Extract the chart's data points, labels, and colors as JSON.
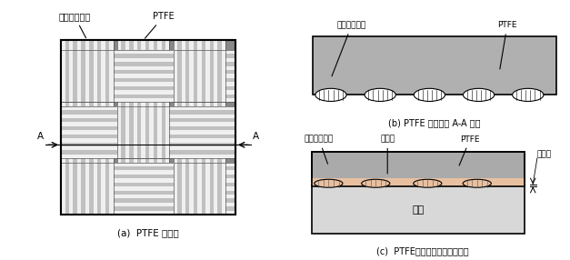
{
  "bg_color": "#ffffff",
  "border_color": "#000000",
  "dark_gray": "#888888",
  "medium_gray": "#aaaaaa",
  "strip_gray": "#c0c0c0",
  "adhesive_color": "#e8c0a0",
  "base_metal_color": "#d0d0d0",
  "text_glass_fiber": "ガラス繊維束",
  "text_ptfe": "PTFE",
  "text_adhesive": "接着剤",
  "text_adhesive_layer": "接着層",
  "text_base_metal": "台金",
  "text_A": "A",
  "label_a": "(a)  PTFE 成形体",
  "label_b": "(b) PTFE 成形体の A-A 断面",
  "label_c": "(c)  PTFEと台金の接着体の断面"
}
